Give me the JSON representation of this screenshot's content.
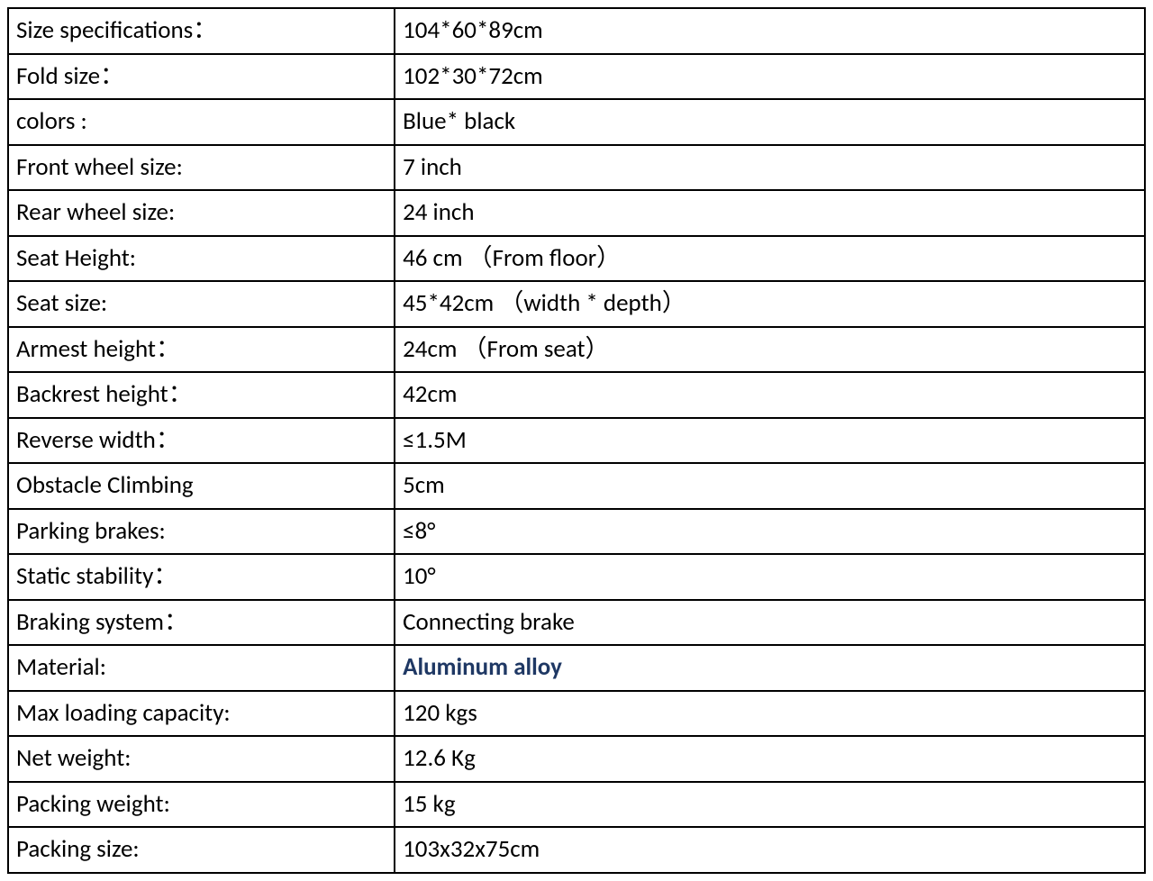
{
  "table": {
    "columns": [
      "label",
      "value"
    ],
    "column_widths": [
      "34%",
      "66%"
    ],
    "border_color": "#000000",
    "border_width": 2,
    "background_color": "#ffffff",
    "text_color": "#000000",
    "font_size": 27,
    "highlight_color": "#1f3864",
    "rows": [
      {
        "label": "Size specifications：",
        "value": "104*60*89cm",
        "highlighted": false
      },
      {
        "label": "Fold size：",
        "value": "102*30*72cm",
        "highlighted": false
      },
      {
        "label": "colors :",
        "value": "Blue* black",
        "highlighted": false
      },
      {
        "label": "Front wheel  size:",
        "value": "7 inch",
        "highlighted": false
      },
      {
        "label": "Rear  wheel  size:",
        "value": "24 inch",
        "highlighted": false
      },
      {
        "label": "Seat Height:",
        "value": "46 cm （From floor）",
        "highlighted": false
      },
      {
        "label": "Seat size:",
        "value": "45*42cm （width * depth）",
        "highlighted": false
      },
      {
        "label": "Armest height：",
        "value": "24cm （From seat）",
        "highlighted": false
      },
      {
        "label": "Backrest height：",
        "value": "42cm",
        "highlighted": false
      },
      {
        "label": "Reverse width：",
        "value": "≤1.5M",
        "highlighted": false
      },
      {
        "label": "Obstacle Climbing",
        "value": "5cm",
        "highlighted": false
      },
      {
        "label": "Parking brakes:",
        "value": "≤8°",
        "highlighted": false
      },
      {
        "label": "Static stability：",
        "value": "10°",
        "highlighted": false
      },
      {
        "label": "Braking system：",
        "value": "Connecting brake",
        "highlighted": false
      },
      {
        "label": "Material:",
        "value": "Aluminum alloy",
        "highlighted": true
      },
      {
        "label": "Max loading capacity:",
        "value": "120 kgs",
        "highlighted": false
      },
      {
        "label": "Net weight:",
        "value": "12.6 Kg",
        "highlighted": false
      },
      {
        "label": "Packing weight:",
        "value": "15 kg",
        "highlighted": false
      },
      {
        "label": "Packing size:",
        "value": "103x32x75cm",
        "highlighted": false
      }
    ]
  }
}
